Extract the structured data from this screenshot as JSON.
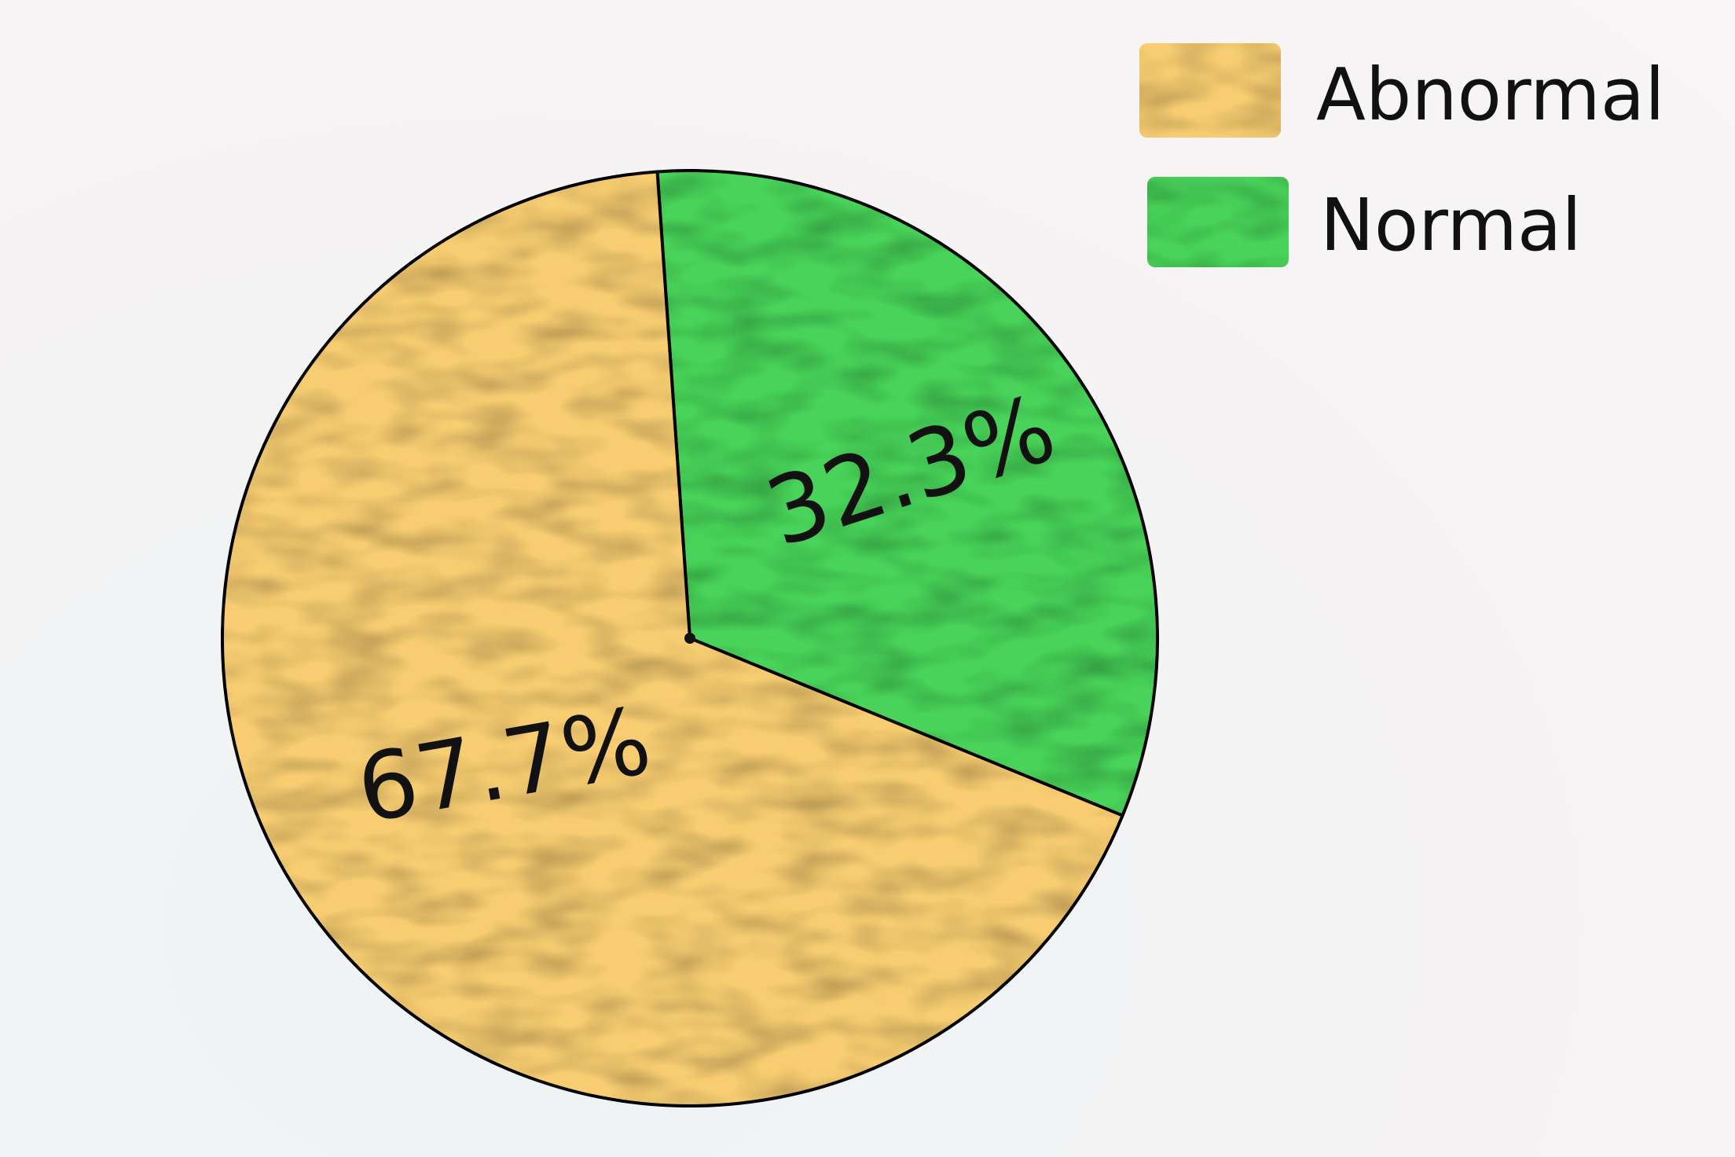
{
  "chart_data": {
    "type": "pie",
    "title": "",
    "slices": [
      {
        "name": "Normal",
        "value": 32.3,
        "label": "32.3%",
        "color": "#48d35a"
      },
      {
        "name": "Abnormal",
        "value": 67.7,
        "label": "67.7%",
        "color": "#f8cd72"
      }
    ],
    "start_angle_deg": -4,
    "direction": "clockwise",
    "legend": {
      "placement": "top-right",
      "entries": [
        {
          "label": "Abnormal",
          "color": "#f8cd72"
        },
        {
          "label": "Normal",
          "color": "#48d35a"
        }
      ]
    }
  }
}
